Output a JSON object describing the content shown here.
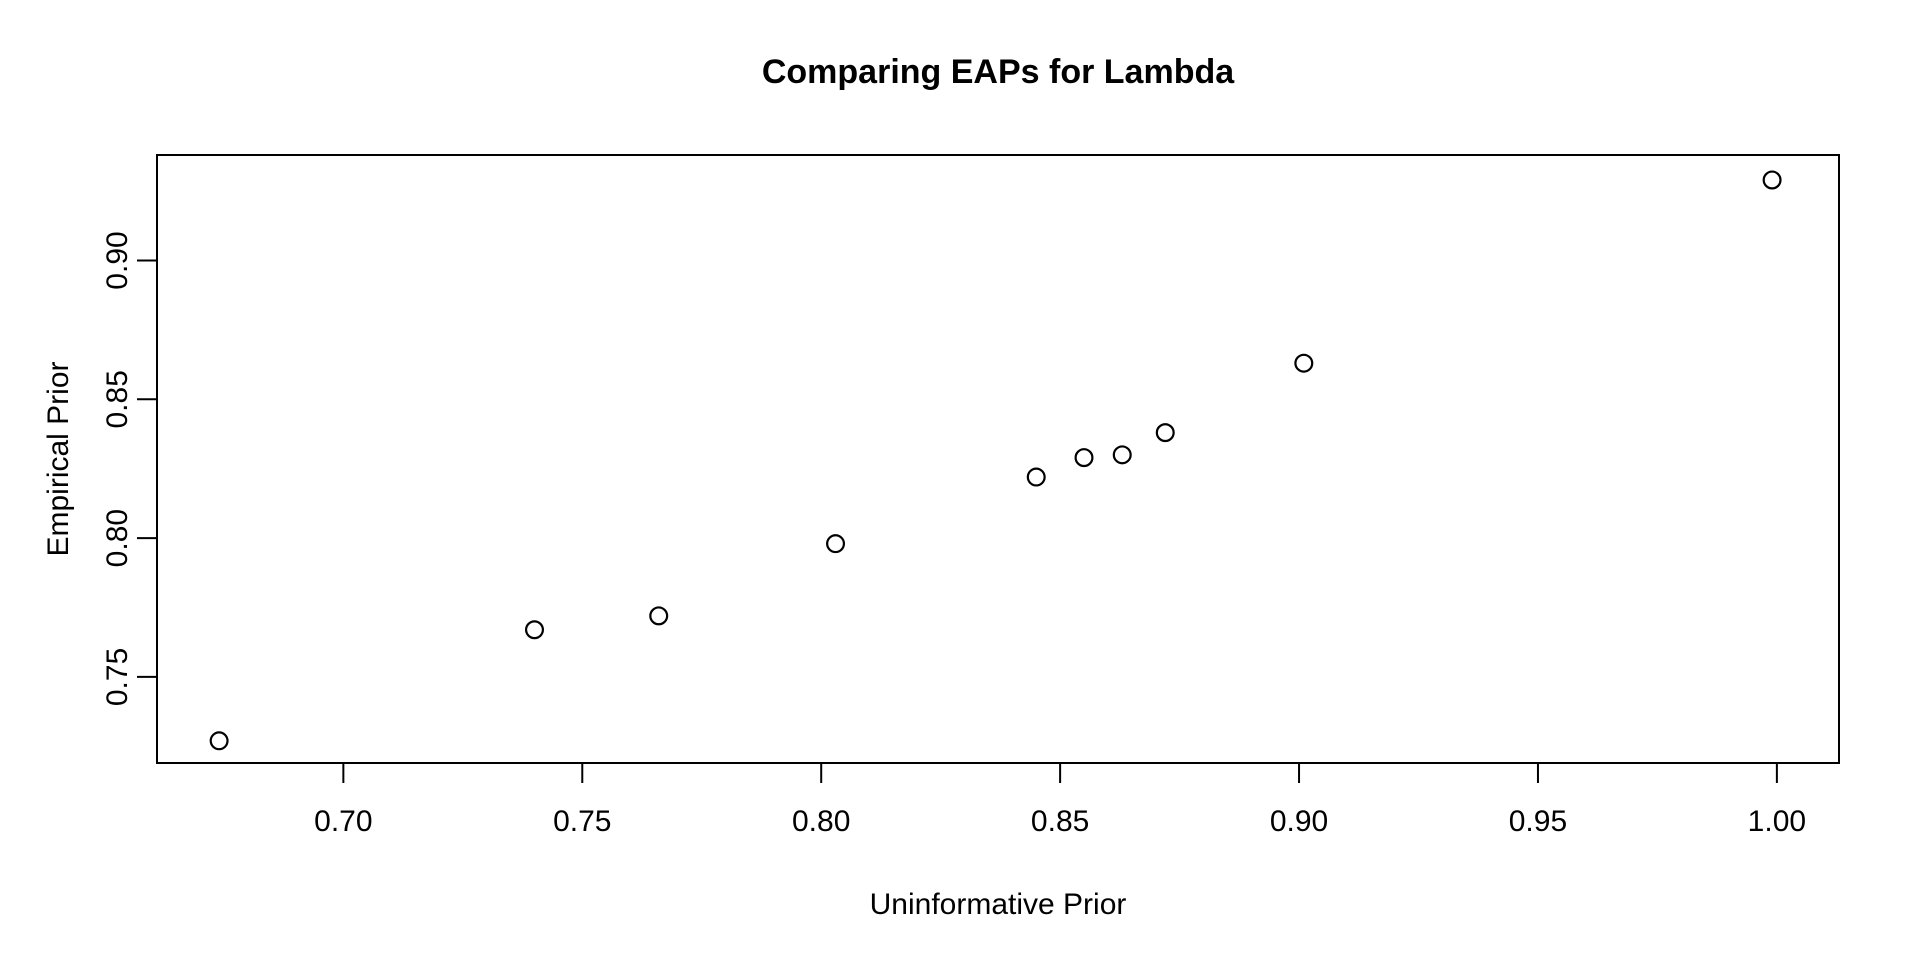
{
  "figure": {
    "background_color": "#ffffff",
    "foreground_color": "#000000"
  },
  "chart_data": {
    "type": "scatter",
    "title": "Comparing EAPs for Lambda",
    "xlabel": "Uninformative Prior",
    "ylabel": "Empirical Prior",
    "xlim": [
      0.661,
      1.013
    ],
    "ylim": [
      0.719,
      0.938
    ],
    "x_ticks": [
      0.7,
      0.75,
      0.8,
      0.85,
      0.9,
      0.95,
      1.0
    ],
    "x_tick_labels": [
      "0.70",
      "0.75",
      "0.80",
      "0.85",
      "0.90",
      "0.95",
      "1.00"
    ],
    "y_ticks": [
      0.75,
      0.8,
      0.85,
      0.9
    ],
    "y_tick_labels": [
      "0.75",
      "0.80",
      "0.85",
      "0.90"
    ],
    "grid": false,
    "legend": null,
    "marker": "open-circle",
    "points": [
      {
        "x": 0.674,
        "y": 0.727
      },
      {
        "x": 0.74,
        "y": 0.767
      },
      {
        "x": 0.766,
        "y": 0.772
      },
      {
        "x": 0.803,
        "y": 0.798
      },
      {
        "x": 0.845,
        "y": 0.822
      },
      {
        "x": 0.855,
        "y": 0.829
      },
      {
        "x": 0.863,
        "y": 0.83
      },
      {
        "x": 0.872,
        "y": 0.838
      },
      {
        "x": 0.901,
        "y": 0.863
      },
      {
        "x": 0.999,
        "y": 0.929
      }
    ]
  }
}
